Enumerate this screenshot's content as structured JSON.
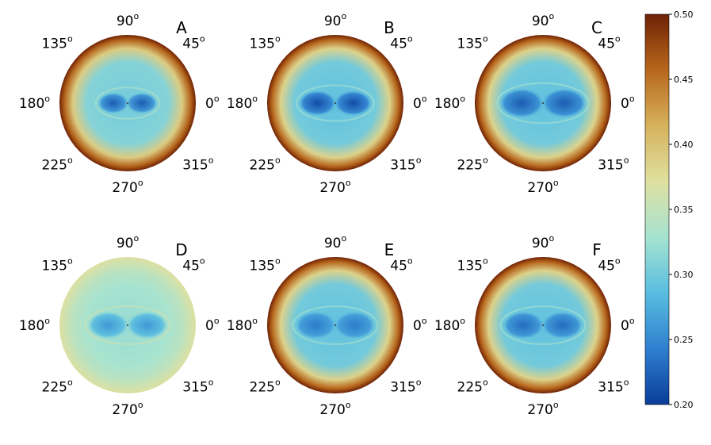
{
  "chart_data": {
    "type": "heatmap",
    "panels": [
      {
        "label": "A",
        "edge_value": 0.5,
        "lobe_value": 0.22,
        "bg_value": 0.3,
        "lobe_size": 0.55
      },
      {
        "label": "B",
        "edge_value": 0.5,
        "lobe_value": 0.21,
        "bg_value": 0.29,
        "lobe_size": 0.75
      },
      {
        "label": "C",
        "edge_value": 0.5,
        "lobe_value": 0.22,
        "bg_value": 0.29,
        "lobe_size": 0.95
      },
      {
        "label": "D",
        "edge_value": 0.37,
        "lobe_value": 0.26,
        "bg_value": 0.32,
        "lobe_size": 0.85
      },
      {
        "label": "E",
        "edge_value": 0.5,
        "lobe_value": 0.24,
        "bg_value": 0.29,
        "lobe_size": 0.85
      },
      {
        "label": "F",
        "edge_value": 0.5,
        "lobe_value": 0.23,
        "bg_value": 0.29,
        "lobe_size": 0.85
      }
    ],
    "angle_labels": [
      {
        "deg": 90,
        "text": "90"
      },
      {
        "deg": 135,
        "text": "135"
      },
      {
        "deg": 45,
        "text": "45"
      },
      {
        "deg": 180,
        "text": "180"
      },
      {
        "deg": 0,
        "text": "0"
      },
      {
        "deg": 225,
        "text": "225"
      },
      {
        "deg": 315,
        "text": "315"
      },
      {
        "deg": 270,
        "text": "270"
      }
    ],
    "angle_unit": "o",
    "colorbar": {
      "min": 0.2,
      "max": 0.5,
      "ticks": [
        "0.20",
        "0.25",
        "0.30",
        "0.35",
        "0.40",
        "0.45",
        "0.50"
      ],
      "colormap": [
        "#0a3d99",
        "#2f7fcf",
        "#59bde0",
        "#a6e3d1",
        "#dfe0a0",
        "#d6b25c",
        "#b8671c",
        "#6e2205"
      ]
    }
  }
}
